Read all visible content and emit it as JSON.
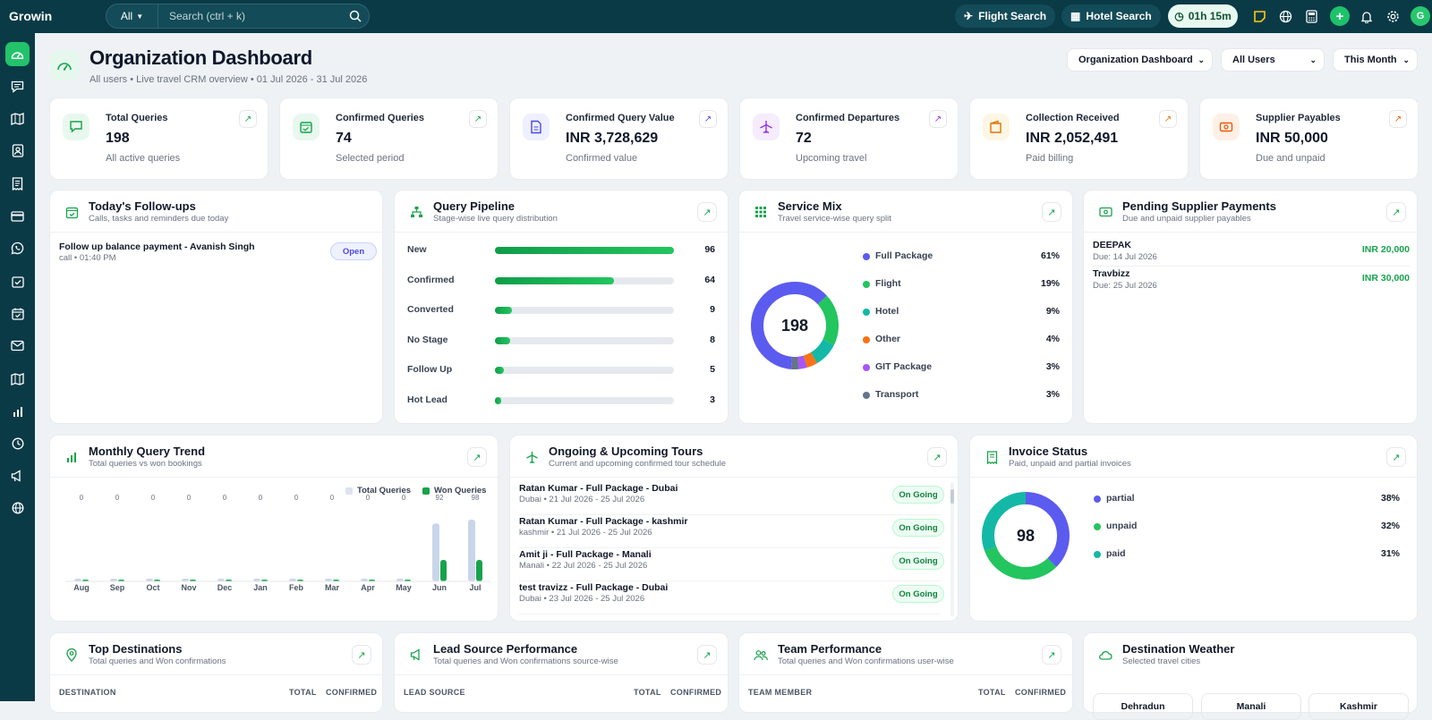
{
  "app": {
    "name": "Growin"
  },
  "topbar": {
    "search_scope": "All",
    "search_placeholder": "Search (ctrl + k)",
    "flight_search": "Flight Search",
    "hotel_search": "Hotel Search",
    "timer": "01h 15m",
    "avatar_initial": "G"
  },
  "header": {
    "title": "Organization Dashboard",
    "subtitle": "All users • Live travel CRM overview • 01 Jul 2026 - 31 Jul 2026",
    "dashboard_select": "Organization Dashboard",
    "users_select": "All Users",
    "period_select": "This Month"
  },
  "kpis": [
    {
      "label": "Total Queries",
      "value": "198",
      "sub": "All active queries",
      "icon": "chat-icon",
      "color": "#16a34a"
    },
    {
      "label": "Confirmed Queries",
      "value": "74",
      "sub": "Selected period",
      "icon": "calendar-check-icon",
      "color": "#16a34a"
    },
    {
      "label": "Confirmed Query Value",
      "value": "INR 3,728,629",
      "sub": "Confirmed value",
      "icon": "document-icon",
      "color": "#4f46e5"
    },
    {
      "label": "Confirmed Departures",
      "value": "72",
      "sub": "Upcoming travel",
      "icon": "plane-icon",
      "color": "#9333ea"
    },
    {
      "label": "Collection Received",
      "value": "INR 2,052,491",
      "sub": "Paid billing",
      "icon": "wallet-icon",
      "color": "#d97706"
    },
    {
      "label": "Supplier Payables",
      "value": "INR 50,000",
      "sub": "Due and unpaid",
      "icon": "cash-icon",
      "color": "#ea580c"
    }
  ],
  "followups": {
    "title": "Today's Follow-ups",
    "subtitle": "Calls, tasks and reminders due today",
    "items": [
      {
        "title": "Follow up balance payment - Avanish Singh",
        "meta": "call • 01:40 PM",
        "status": "Open"
      }
    ]
  },
  "pipeline": {
    "title": "Query Pipeline",
    "subtitle": "Stage-wise live query distribution",
    "stages": [
      {
        "label": "New",
        "value": "96"
      },
      {
        "label": "Confirmed",
        "value": "64"
      },
      {
        "label": "Converted",
        "value": "9"
      },
      {
        "label": "No Stage",
        "value": "8"
      },
      {
        "label": "Follow Up",
        "value": "5"
      },
      {
        "label": "Hot Lead",
        "value": "3"
      }
    ]
  },
  "service_mix": {
    "title": "Service Mix",
    "subtitle": "Travel service-wise query split",
    "total": "198",
    "items": [
      {
        "name": "Full Package",
        "pct": "61%",
        "value": 61,
        "color": "#5b5bf0"
      },
      {
        "name": "Flight",
        "pct": "19%",
        "value": 19,
        "color": "#22c55e"
      },
      {
        "name": "Hotel",
        "pct": "9%",
        "value": 9,
        "color": "#14b8a6"
      },
      {
        "name": "Other",
        "pct": "4%",
        "value": 4,
        "color": "#f97316"
      },
      {
        "name": "GIT Package",
        "pct": "3%",
        "value": 3,
        "color": "#a855f7"
      },
      {
        "name": "Transport",
        "pct": "3%",
        "value": 3,
        "color": "#64748b"
      }
    ]
  },
  "supplier_payments": {
    "title": "Pending Supplier Payments",
    "subtitle": "Due and unpaid supplier payables",
    "items": [
      {
        "name": "DEEPAK",
        "due": "Due: 14 Jul 2026",
        "amount": "INR 20,000"
      },
      {
        "name": "Travbizz",
        "due": "Due: 25 Jul 2026",
        "amount": "INR 30,000"
      }
    ]
  },
  "chart_data": {
    "type": "bar",
    "title": "Monthly Query Trend",
    "subtitle": "Total queries vs won bookings",
    "categories": [
      "Aug",
      "Sep",
      "Oct",
      "Nov",
      "Dec",
      "Jan",
      "Feb",
      "Mar",
      "Apr",
      "May",
      "Jun",
      "Jul"
    ],
    "top_labels": [
      "0",
      "0",
      "0",
      "0",
      "0",
      "0",
      "0",
      "0",
      "0",
      "0",
      "92",
      "98"
    ],
    "series": [
      {
        "name": "Total Queries",
        "color": "#c9d6ea",
        "values": [
          0,
          0,
          0,
          0,
          0,
          0,
          0,
          0,
          0,
          0,
          92,
          98
        ]
      },
      {
        "name": "Won Queries",
        "color": "#16a34a",
        "values": [
          0,
          0,
          0,
          0,
          0,
          0,
          0,
          0,
          0,
          0,
          34,
          34
        ]
      }
    ],
    "legend": "top-right",
    "ylim": [
      0,
      98
    ]
  },
  "tours": {
    "title": "Ongoing & Upcoming Tours",
    "subtitle": "Current and upcoming confirmed tour schedule",
    "items": [
      {
        "title": "Ratan Kumar - Full Package - Dubai",
        "meta": "Dubai • 21 Jul 2026 - 25 Jul 2026",
        "status": "On Going"
      },
      {
        "title": "Ratan Kumar - Full Package - kashmir",
        "meta": "kashmir • 21 Jul 2026 - 25 Jul 2026",
        "status": "On Going"
      },
      {
        "title": "Amit ji - Full Package - Manali",
        "meta": "Manali • 22 Jul 2026 - 25 Jul 2026",
        "status": "On Going"
      },
      {
        "title": "test travizz - Full Package - Dubai",
        "meta": "Dubai • 23 Jul 2026 - 25 Jul 2026",
        "status": "On Going"
      }
    ]
  },
  "invoice": {
    "title": "Invoice Status",
    "subtitle": "Paid, unpaid and partial invoices",
    "total": "98",
    "items": [
      {
        "name": "partial",
        "pct": "38%",
        "value": 38,
        "color": "#5b5bf0"
      },
      {
        "name": "unpaid",
        "pct": "32%",
        "value": 32,
        "color": "#22c55e"
      },
      {
        "name": "paid",
        "pct": "31%",
        "value": 31,
        "color": "#14b8a6"
      }
    ]
  },
  "destinations": {
    "title": "Top Destinations",
    "subtitle": "Total queries and Won confirmations",
    "col1": "DESTINATION",
    "col2": "TOTAL",
    "col3": "CONFIRMED"
  },
  "lead_source": {
    "title": "Lead Source Performance",
    "subtitle": "Total queries and Won confirmations source-wise",
    "col1": "LEAD SOURCE",
    "col2": "TOTAL",
    "col3": "CONFIRMED"
  },
  "team": {
    "title": "Team Performance",
    "subtitle": "Total queries and Won confirmations user-wise",
    "col1": "TEAM MEMBER",
    "col2": "TOTAL",
    "col3": "CONFIRMED"
  },
  "weather": {
    "title": "Destination Weather",
    "subtitle": "Selected travel cities",
    "cities": [
      "Dehradun",
      "Manali",
      "Kashmir"
    ]
  }
}
